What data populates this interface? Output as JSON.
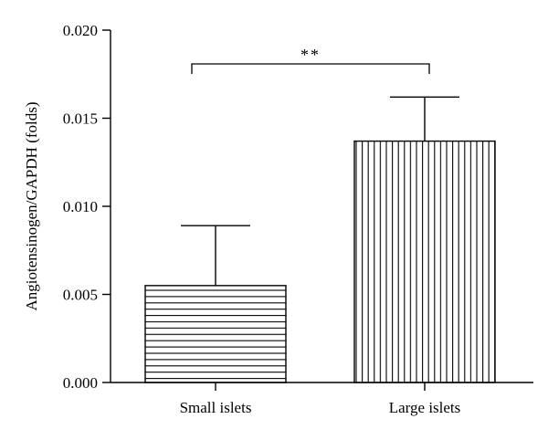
{
  "chart_data": {
    "type": "bar",
    "title": "",
    "xlabel": "",
    "ylabel": "Angiotensinogen/GAPDH (folds)",
    "ylim": [
      0,
      0.02
    ],
    "yticks": [
      "0.000",
      "0.005",
      "0.010",
      "0.015",
      "0.020"
    ],
    "categories": [
      "Small islets",
      "Large islets"
    ],
    "values": [
      0.0055,
      0.0137
    ],
    "errors": [
      0.0034,
      0.0025
    ],
    "bar_patterns": [
      "horizontal-lines",
      "vertical-lines"
    ],
    "grid": false,
    "annotation": {
      "text": "**",
      "between": [
        "Small islets",
        "Large islets"
      ]
    }
  }
}
